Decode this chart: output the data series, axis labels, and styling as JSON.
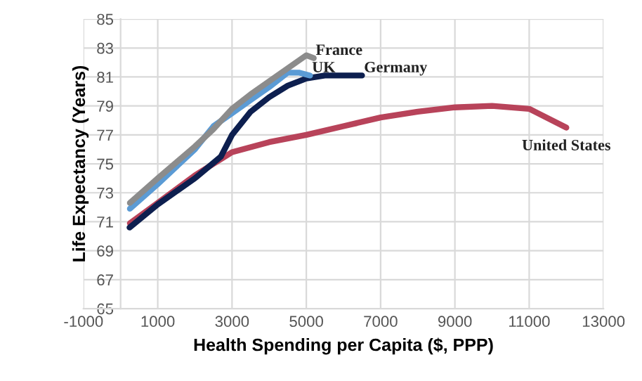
{
  "chart_data": {
    "type": "line",
    "xlabel": "Health Spending per Capita ($, PPP)",
    "ylabel": "Life Expectancy (Years)",
    "xlim": [
      -1000,
      13000
    ],
    "xticks": [
      -1000,
      1000,
      3000,
      5000,
      7000,
      9000,
      11000,
      13000
    ],
    "ylim": [
      65,
      85
    ],
    "yticks": [
      65,
      67,
      69,
      71,
      73,
      75,
      77,
      79,
      81,
      83,
      85
    ],
    "grid": true,
    "legend": false,
    "series": [
      {
        "name": "United States",
        "color": "#b8435a",
        "x": [
          250,
          1000,
          2000,
          3000,
          4000,
          5000,
          6000,
          7000,
          8000,
          9000,
          10000,
          11000,
          12000
        ],
        "values": [
          70.9,
          72.3,
          74.2,
          75.8,
          76.5,
          77,
          77.6,
          78.2,
          78.6,
          78.9,
          79,
          78.8,
          77.5
        ]
      },
      {
        "name": "Germany",
        "color": "#0d1f4f",
        "x": [
          240,
          1000,
          2000,
          2700,
          3000,
          3500,
          4000,
          4500,
          5000,
          5500,
          6500
        ],
        "values": [
          70.6,
          72.2,
          74,
          75.5,
          77,
          78.6,
          79.6,
          80.4,
          80.9,
          81.1,
          81.1
        ]
      },
      {
        "name": "UK",
        "color": "#5b9bd5",
        "x": [
          250,
          1000,
          2000,
          2500,
          3000,
          3500,
          4000,
          4500,
          4800,
          5100
        ],
        "values": [
          71.9,
          73.6,
          76,
          77.6,
          78.5,
          79.4,
          80.3,
          81.3,
          81.3,
          81.1
        ]
      },
      {
        "name": "France",
        "color": "#8c8c8c",
        "x": [
          250,
          1000,
          2000,
          2500,
          3000,
          3500,
          4000,
          4500,
          5000,
          5200
        ],
        "values": [
          72.3,
          74,
          76.2,
          77.4,
          78.8,
          79.8,
          80.7,
          81.6,
          82.5,
          82.3
        ]
      }
    ]
  }
}
